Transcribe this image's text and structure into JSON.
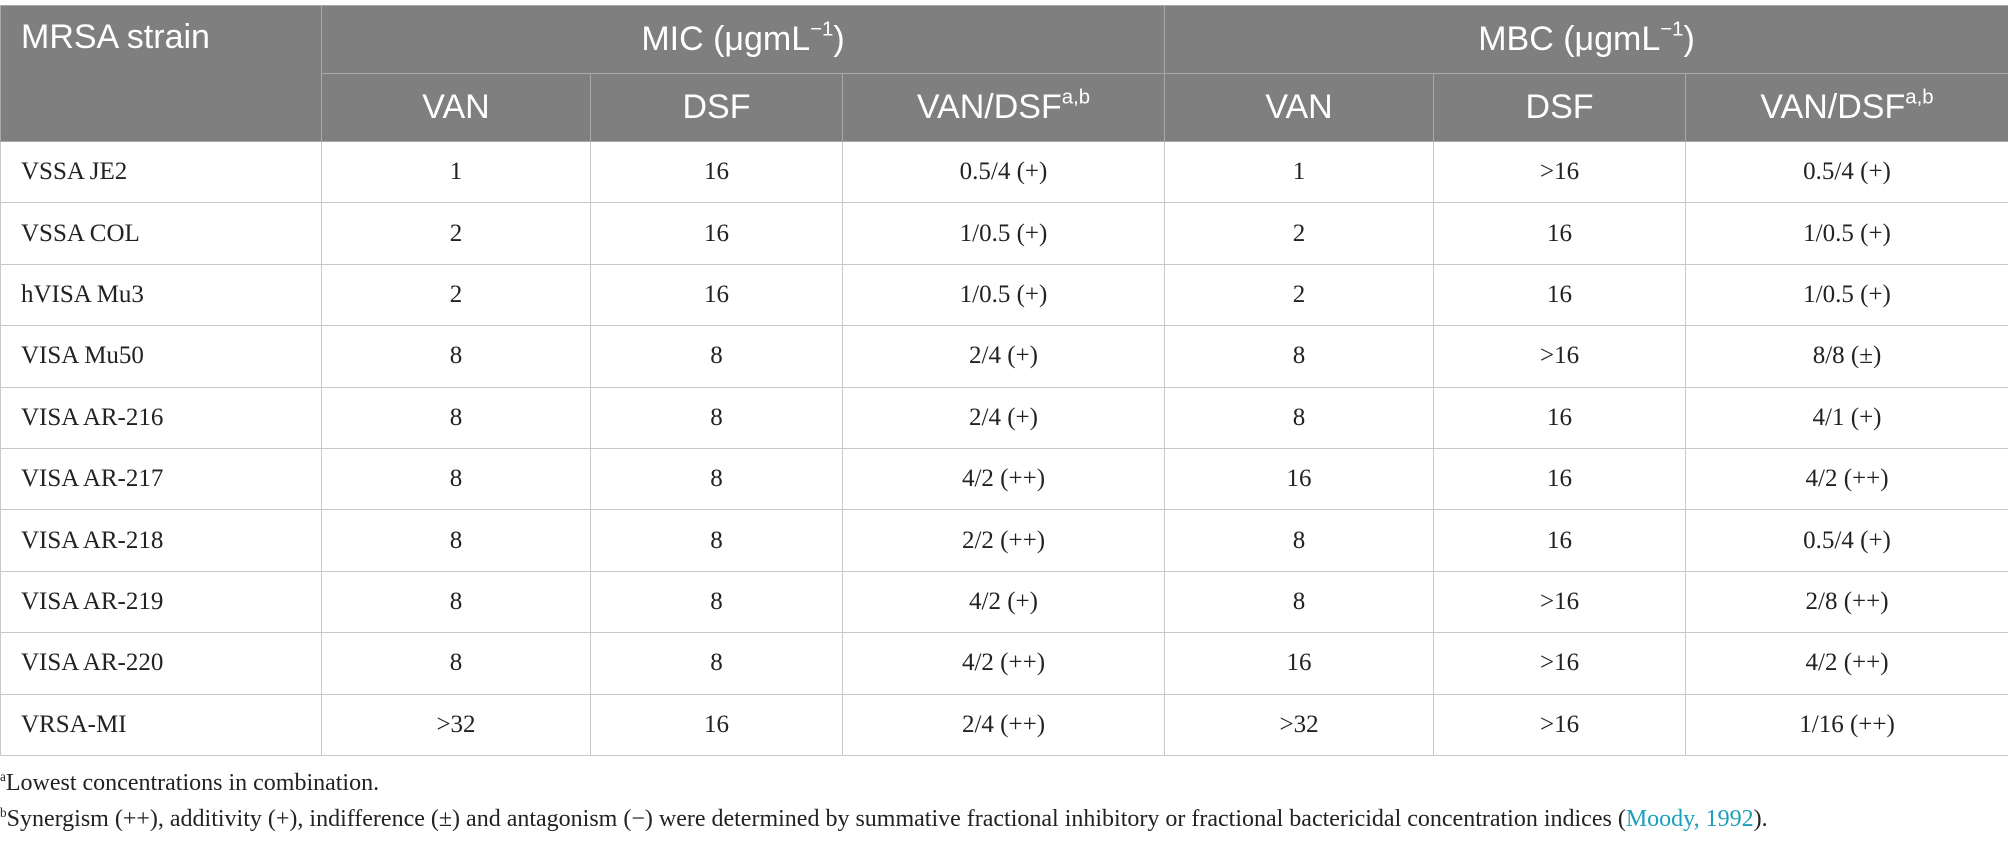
{
  "table": {
    "header": {
      "strain": "MRSA strain",
      "groups": [
        {
          "text": "MIC (μgmL",
          "sup": "−1",
          "tail": ")"
        },
        {
          "text": "MBC (μgmL",
          "sup": "−1",
          "tail": ")"
        }
      ],
      "subcolumns": [
        {
          "text": "VAN"
        },
        {
          "text": "DSF"
        },
        {
          "text": "VAN/DSF",
          "sup": "a,b"
        },
        {
          "text": "VAN"
        },
        {
          "text": "DSF"
        },
        {
          "text": "VAN/DSF",
          "sup": "a,b"
        }
      ]
    },
    "rows": [
      [
        "VSSA JE2",
        "1",
        "16",
        "0.5/4 (+)",
        "1",
        ">16",
        "0.5/4 (+)"
      ],
      [
        "VSSA COL",
        "2",
        "16",
        "1/0.5 (+)",
        "2",
        "16",
        "1/0.5 (+)"
      ],
      [
        "hVISA Mu3",
        "2",
        "16",
        "1/0.5 (+)",
        "2",
        "16",
        "1/0.5 (+)"
      ],
      [
        "VISA Mu50",
        "8",
        "8",
        "2/4 (+)",
        "8",
        ">16",
        "8/8 (±)"
      ],
      [
        "VISA AR-216",
        "8",
        "8",
        "2/4 (+)",
        "8",
        "16",
        "4/1 (+)"
      ],
      [
        "VISA AR-217",
        "8",
        "8",
        "4/2 (++)",
        "16",
        "16",
        "4/2 (++)"
      ],
      [
        "VISA AR-218",
        "8",
        "8",
        "2/2 (++)",
        "8",
        "16",
        "0.5/4 (+)"
      ],
      [
        "VISA AR-219",
        "8",
        "8",
        "4/2 (+)",
        "8",
        ">16",
        "2/8 (++)"
      ],
      [
        "VISA AR-220",
        "8",
        "8",
        "4/2 (++)",
        "16",
        ">16",
        "4/2 (++)"
      ],
      [
        "VRSA-MI",
        ">32",
        "16",
        "2/4 (++)",
        ">32",
        ">16",
        "1/16 (++)"
      ]
    ]
  },
  "footnotes": [
    {
      "marker": "a",
      "text": "Lowest concentrations in combination."
    },
    {
      "marker": "b",
      "text": "Synergism (++), additivity (+), indifference (±) and antagonism (−) were determined by summative fractional inhibitory or fractional bactericidal concentration indices (",
      "link": "Moody, 1992",
      "tail": ")."
    }
  ]
}
